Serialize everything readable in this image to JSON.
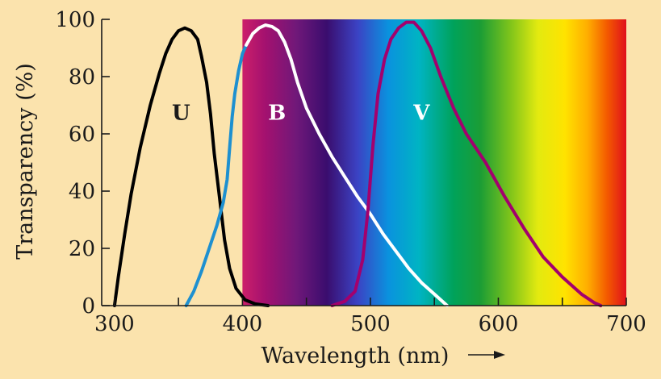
{
  "chart_data": {
    "type": "line",
    "title": "",
    "xlabel": "Wavelength (nm)",
    "ylabel": "Transparency (%)",
    "xlim": [
      290,
      700
    ],
    "ylim": [
      0,
      100
    ],
    "x_ticks": [
      300,
      400,
      500,
      600,
      700
    ],
    "x_tick_labels": [
      "300",
      "400",
      "500",
      "600",
      "700"
    ],
    "y_ticks": [
      0,
      20,
      40,
      60,
      80,
      100
    ],
    "y_tick_labels": [
      "0",
      "20",
      "40",
      "60",
      "80",
      "100"
    ],
    "grid": false,
    "legend": "none",
    "spectrum_band": [
      400,
      700
    ],
    "series": [
      {
        "name": "U",
        "color": "#000000",
        "label_at": [
          352,
          65
        ],
        "label_color": "#1a1a1a",
        "points": [
          [
            300,
            0
          ],
          [
            303,
            10
          ],
          [
            308,
            25
          ],
          [
            313,
            39
          ],
          [
            320,
            55
          ],
          [
            328,
            70
          ],
          [
            335,
            81
          ],
          [
            340,
            88
          ],
          [
            345,
            93
          ],
          [
            350,
            96
          ],
          [
            355,
            97
          ],
          [
            360,
            96
          ],
          [
            365,
            93
          ],
          [
            368,
            87
          ],
          [
            372,
            78
          ],
          [
            375,
            67
          ],
          [
            378,
            53
          ],
          [
            382,
            38
          ],
          [
            386,
            23
          ],
          [
            390,
            13
          ],
          [
            395,
            6
          ],
          [
            402,
            2
          ],
          [
            410,
            0.6
          ],
          [
            420,
            0
          ]
        ]
      },
      {
        "name": "B",
        "color": "#1e90d0",
        "label_at": [
          427,
          65
        ],
        "label_color": "#ffffff",
        "points": [
          [
            356,
            0
          ],
          [
            362,
            5
          ],
          [
            368,
            12
          ],
          [
            374,
            20
          ],
          [
            380,
            28
          ],
          [
            385,
            36
          ],
          [
            388,
            44
          ],
          [
            390,
            55
          ],
          [
            392,
            66
          ],
          [
            394,
            74
          ],
          [
            397,
            82
          ],
          [
            400,
            88
          ],
          [
            403,
            91
          ]
        ]
      },
      {
        "name": "",
        "color": "#ffffff",
        "points": [
          [
            403,
            91
          ],
          [
            408,
            95
          ],
          [
            413,
            97
          ],
          [
            418,
            98
          ],
          [
            423,
            97.5
          ],
          [
            428,
            96
          ],
          [
            433,
            92
          ],
          [
            438,
            86
          ],
          [
            443,
            78
          ],
          [
            450,
            69
          ],
          [
            460,
            60
          ],
          [
            470,
            52
          ],
          [
            480,
            45
          ],
          [
            490,
            38
          ],
          [
            500,
            32
          ],
          [
            510,
            25
          ],
          [
            520,
            19
          ],
          [
            530,
            13
          ],
          [
            540,
            8
          ],
          [
            550,
            4
          ],
          [
            560,
            0
          ]
        ]
      },
      {
        "name": "V",
        "color": "#a3006d",
        "label_at": [
          540,
          65
        ],
        "label_color": "#ffffff",
        "points": [
          [
            470,
            0
          ],
          [
            480,
            1.5
          ],
          [
            488,
            5
          ],
          [
            494,
            16
          ],
          [
            498,
            33
          ],
          [
            502,
            56
          ],
          [
            506,
            74
          ],
          [
            511,
            86
          ],
          [
            516,
            93
          ],
          [
            522,
            97
          ],
          [
            528,
            99
          ],
          [
            534,
            99
          ],
          [
            540,
            96
          ],
          [
            547,
            90
          ],
          [
            555,
            80
          ],
          [
            565,
            69
          ],
          [
            575,
            60
          ],
          [
            590,
            50
          ],
          [
            605,
            38
          ],
          [
            620,
            27
          ],
          [
            635,
            17
          ],
          [
            650,
            10
          ],
          [
            665,
            4
          ],
          [
            675,
            1
          ],
          [
            680,
            0
          ]
        ]
      }
    ]
  }
}
